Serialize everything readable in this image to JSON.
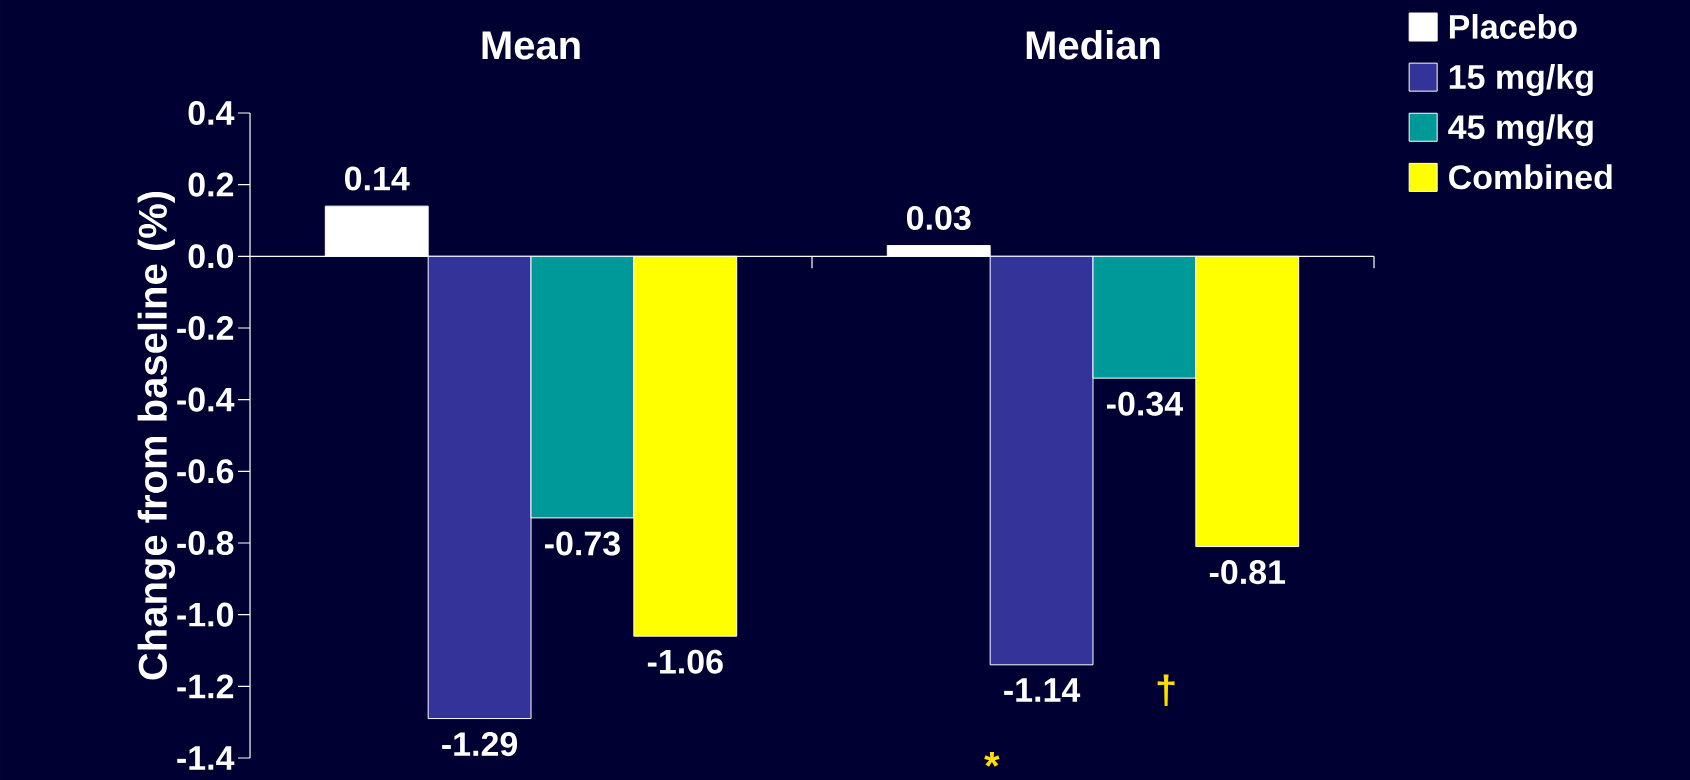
{
  "chart_data": {
    "type": "bar",
    "categories": [
      "Mean",
      "Median"
    ],
    "ylabel": "Change from baseline (%)",
    "series": [
      {
        "name": "Placebo",
        "color": "#ffffff",
        "values": [
          0.14,
          0.03
        ]
      },
      {
        "name": "15 mg/kg",
        "color": "#333399",
        "values": [
          -1.29,
          -1.14
        ]
      },
      {
        "name": "45 mg/kg",
        "color": "#009999",
        "values": [
          -0.73,
          -0.34
        ]
      },
      {
        "name": "Combined",
        "color": "#ffff00",
        "values": [
          -1.06,
          -0.81
        ]
      }
    ],
    "ylim": [
      -1.4,
      0.4
    ],
    "yticks": [
      0.4,
      0.2,
      {
        "value": 0,
        "label": "0.0"
      },
      -0.2,
      -0.4,
      -0.6,
      -0.8,
      {
        "value": -1.0,
        "label": "-1.0"
      },
      -1.2,
      -1.4
    ],
    "data_labels": true,
    "legend": "top right",
    "annotations": [
      "*",
      "†"
    ]
  }
}
